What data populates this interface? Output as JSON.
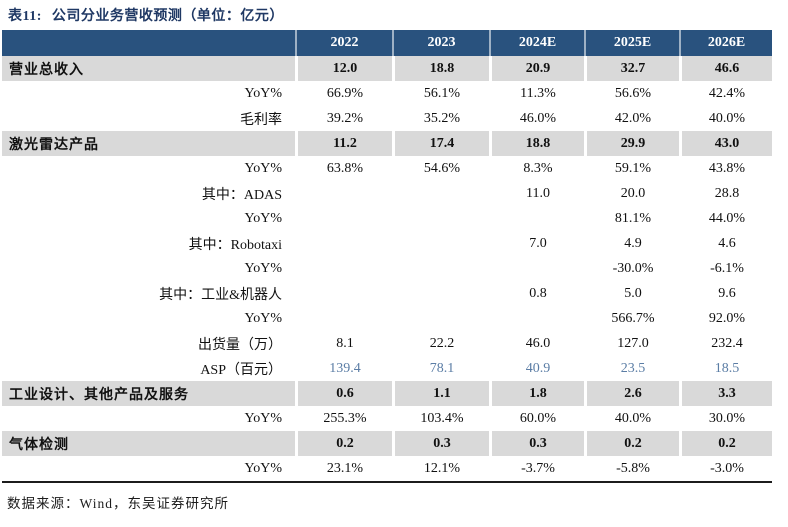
{
  "title": {
    "tag": "表11:",
    "text": "公司分业务营收预测（单位：亿元）"
  },
  "columns": [
    "2022",
    "2023",
    "2024E",
    "2025E",
    "2026E"
  ],
  "rows": [
    {
      "label": "营业总收入",
      "type": "section",
      "values": [
        "12.0",
        "18.8",
        "20.9",
        "32.7",
        "46.6"
      ]
    },
    {
      "label": "YoY%",
      "type": "sub",
      "values": [
        "66.9%",
        "56.1%",
        "11.3%",
        "56.6%",
        "42.4%"
      ]
    },
    {
      "label": "毛利率",
      "type": "sub",
      "values": [
        "39.2%",
        "35.2%",
        "46.0%",
        "42.0%",
        "40.0%"
      ]
    },
    {
      "label": "激光雷达产品",
      "type": "section",
      "values": [
        "11.2",
        "17.4",
        "18.8",
        "29.9",
        "43.0"
      ]
    },
    {
      "label": "YoY%",
      "type": "sub",
      "values": [
        "63.8%",
        "54.6%",
        "8.3%",
        "59.1%",
        "43.8%"
      ]
    },
    {
      "label": "其中：ADAS",
      "type": "sub",
      "values": [
        "",
        "",
        "11.0",
        "20.0",
        "28.8"
      ]
    },
    {
      "label": "YoY%",
      "type": "sub",
      "values": [
        "",
        "",
        "",
        "81.1%",
        "44.0%"
      ]
    },
    {
      "label": "其中：Robotaxi",
      "type": "sub",
      "values": [
        "",
        "",
        "7.0",
        "4.9",
        "4.6"
      ]
    },
    {
      "label": "YoY%",
      "type": "sub",
      "values": [
        "",
        "",
        "",
        "-30.0%",
        "-6.1%"
      ]
    },
    {
      "label": "其中：工业&机器人",
      "type": "sub",
      "values": [
        "",
        "",
        "0.8",
        "5.0",
        "9.6"
      ]
    },
    {
      "label": "YoY%",
      "type": "sub",
      "values": [
        "",
        "",
        "",
        "566.7%",
        "92.0%"
      ]
    },
    {
      "label": "出货量（万）",
      "type": "sub",
      "values": [
        "8.1",
        "22.2",
        "46.0",
        "127.0",
        "232.4"
      ]
    },
    {
      "label": "ASP（百元）",
      "type": "sub",
      "accent": true,
      "values": [
        "139.4",
        "78.1",
        "40.9",
        "23.5",
        "18.5"
      ]
    },
    {
      "label": "工业设计、其他产品及服务",
      "type": "section",
      "values": [
        "0.6",
        "1.1",
        "1.8",
        "2.6",
        "3.3"
      ]
    },
    {
      "label": "YoY%",
      "type": "sub",
      "values": [
        "255.3%",
        "103.4%",
        "60.0%",
        "40.0%",
        "30.0%"
      ]
    },
    {
      "label": "气体检测",
      "type": "section",
      "values": [
        "0.2",
        "0.3",
        "0.3",
        "0.2",
        "0.2"
      ]
    },
    {
      "label": "YoY%",
      "type": "sub",
      "values": [
        "23.1%",
        "12.1%",
        "-3.7%",
        "-5.8%",
        "-3.0%"
      ]
    }
  ],
  "footer": {
    "text": "数据来源：Wind，东吴证券研究所"
  },
  "colors": {
    "header_bg": "#29527E",
    "title_color": "#1F3864",
    "section_shade": "#D9D9D9",
    "asp_accent": "#5B7DA5"
  }
}
